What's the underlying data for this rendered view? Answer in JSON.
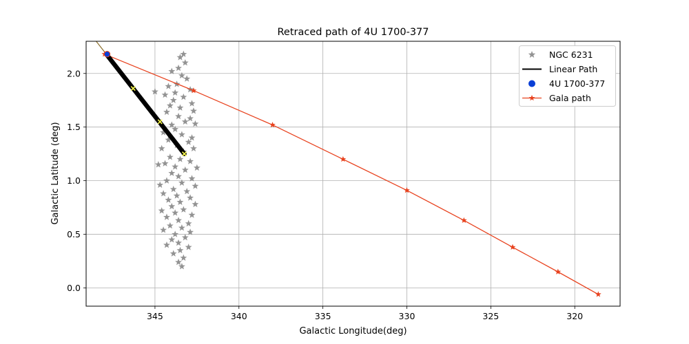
{
  "chart_data": {
    "type": "scatter",
    "title": "Retraced path of 4U 1700-377",
    "xlabel": "Galactic Longitude(deg)",
    "ylabel": "Galactic Latitude (deg)",
    "xlim": [
      349.1,
      317.3
    ],
    "ylim": [
      -0.17,
      2.3
    ],
    "x_inverted": true,
    "grid": true,
    "legend_position": "top-right",
    "xticks": [
      345,
      340,
      335,
      330,
      325,
      320
    ],
    "yticks": [
      0.0,
      0.5,
      1.0,
      1.5,
      2.0
    ],
    "xtick_labels": [
      "345",
      "340",
      "335",
      "330",
      "325",
      "320"
    ],
    "ytick_labels": [
      "0.0",
      "0.5",
      "1.0",
      "1.5",
      "2.0"
    ],
    "legend": [
      {
        "label": "NGC 6231",
        "marker": "star",
        "color": "#939393"
      },
      {
        "label": "Linear Path",
        "marker": "line",
        "color": "#000000"
      },
      {
        "label": "4U 1700-377",
        "marker": "circle",
        "color": "#0a3fd6"
      },
      {
        "label": "Gala path",
        "marker": "line-star",
        "color": "#e8421e"
      }
    ],
    "series": [
      {
        "name": "Gala path",
        "color": "#e8421e",
        "points": [
          [
            348.0,
            2.18
          ],
          [
            342.7,
            1.84
          ],
          [
            338.0,
            1.52
          ],
          [
            333.8,
            1.2
          ],
          [
            330.0,
            0.91
          ],
          [
            326.6,
            0.63
          ],
          [
            323.7,
            0.38
          ],
          [
            321.0,
            0.15
          ],
          [
            318.6,
            -0.06
          ]
        ]
      },
      {
        "name": "Linear Path",
        "color": "#000000",
        "points": [
          [
            347.85,
            2.17
          ],
          [
            343.25,
            1.25
          ]
        ],
        "markers": [
          [
            346.3,
            1.86
          ],
          [
            344.7,
            1.55
          ],
          [
            343.25,
            1.25
          ]
        ],
        "marker_color": "#ffff4d"
      },
      {
        "name": "4U 1700-377",
        "color": "#0a3fd6",
        "points": [
          [
            347.85,
            2.18
          ]
        ]
      },
      {
        "name": "NGC 6231",
        "color": "#939393",
        "center": [
          343.5,
          1.2
        ],
        "points": [
          [
            343.3,
            2.18
          ],
          [
            343.5,
            2.15
          ],
          [
            343.2,
            2.1
          ],
          [
            343.6,
            2.05
          ],
          [
            343.4,
            1.98
          ],
          [
            343.1,
            1.95
          ],
          [
            344.0,
            2.02
          ],
          [
            343.7,
            1.9
          ],
          [
            344.2,
            1.88
          ],
          [
            342.9,
            1.85
          ],
          [
            343.8,
            1.82
          ],
          [
            344.4,
            1.8
          ],
          [
            345.0,
            1.83
          ],
          [
            343.3,
            1.78
          ],
          [
            343.9,
            1.75
          ],
          [
            342.8,
            1.72
          ],
          [
            344.1,
            1.7
          ],
          [
            343.5,
            1.68
          ],
          [
            342.7,
            1.65
          ],
          [
            344.3,
            1.64
          ],
          [
            343.6,
            1.6
          ],
          [
            342.9,
            1.58
          ],
          [
            343.2,
            1.55
          ],
          [
            344.0,
            1.52
          ],
          [
            342.6,
            1.53
          ],
          [
            343.8,
            1.48
          ],
          [
            344.5,
            1.45
          ],
          [
            343.4,
            1.43
          ],
          [
            342.8,
            1.4
          ],
          [
            344.2,
            1.38
          ],
          [
            343.0,
            1.36
          ],
          [
            343.7,
            1.33
          ],
          [
            344.6,
            1.3
          ],
          [
            342.7,
            1.3
          ],
          [
            343.3,
            1.27
          ],
          [
            344.1,
            1.22
          ],
          [
            343.5,
            1.2
          ],
          [
            342.9,
            1.18
          ],
          [
            344.4,
            1.16
          ],
          [
            343.8,
            1.13
          ],
          [
            342.5,
            1.12
          ],
          [
            344.8,
            1.15
          ],
          [
            343.2,
            1.1
          ],
          [
            344.0,
            1.07
          ],
          [
            343.6,
            1.04
          ],
          [
            342.8,
            1.02
          ],
          [
            344.3,
            1.0
          ],
          [
            343.4,
            0.98
          ],
          [
            344.7,
            0.96
          ],
          [
            342.6,
            0.95
          ],
          [
            343.9,
            0.92
          ],
          [
            343.1,
            0.9
          ],
          [
            344.5,
            0.88
          ],
          [
            343.7,
            0.86
          ],
          [
            342.9,
            0.84
          ],
          [
            344.2,
            0.82
          ],
          [
            343.5,
            0.8
          ],
          [
            342.6,
            0.78
          ],
          [
            344.0,
            0.76
          ],
          [
            343.3,
            0.73
          ],
          [
            344.6,
            0.72
          ],
          [
            343.8,
            0.7
          ],
          [
            342.8,
            0.68
          ],
          [
            344.3,
            0.66
          ],
          [
            343.6,
            0.63
          ],
          [
            343.0,
            0.6
          ],
          [
            344.1,
            0.58
          ],
          [
            343.4,
            0.56
          ],
          [
            344.5,
            0.54
          ],
          [
            342.9,
            0.52
          ],
          [
            343.8,
            0.5
          ],
          [
            343.2,
            0.47
          ],
          [
            344.0,
            0.45
          ],
          [
            343.6,
            0.42
          ],
          [
            344.3,
            0.4
          ],
          [
            343.0,
            0.38
          ],
          [
            343.5,
            0.35
          ],
          [
            343.9,
            0.32
          ],
          [
            343.3,
            0.28
          ],
          [
            343.6,
            0.24
          ],
          [
            343.4,
            0.2
          ]
        ]
      }
    ]
  }
}
